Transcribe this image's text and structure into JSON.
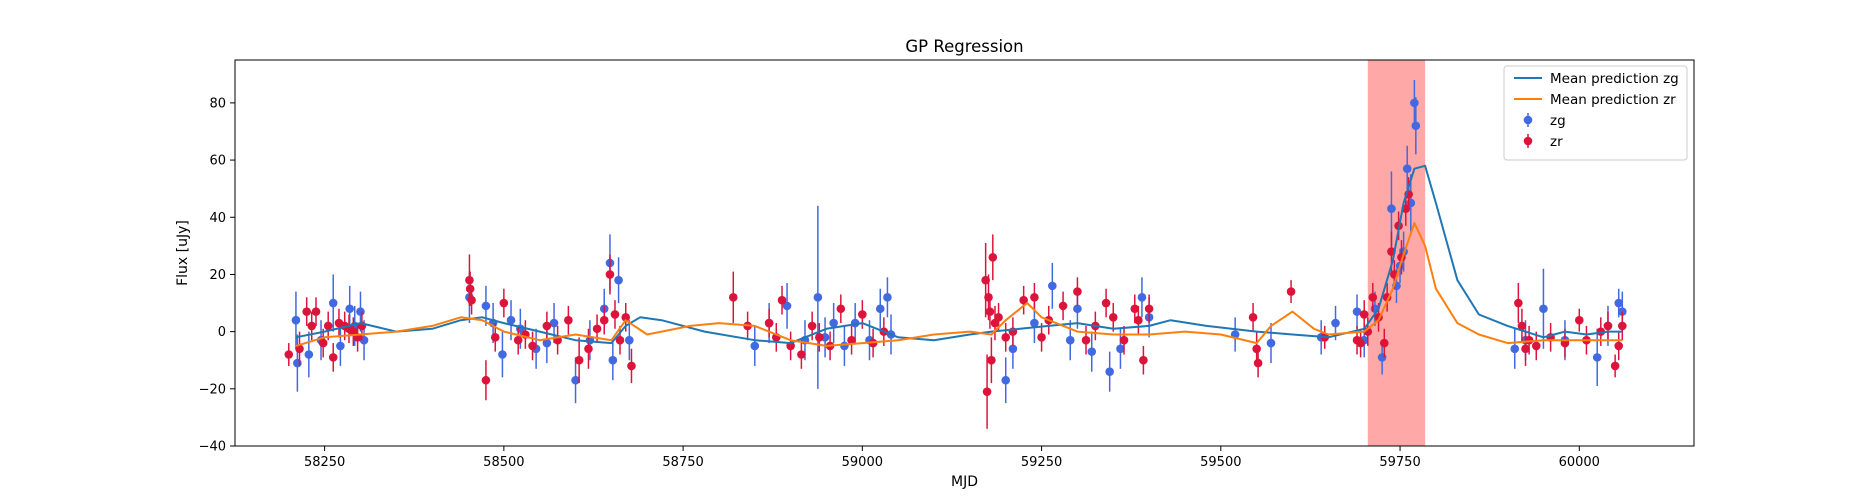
{
  "chart_data": {
    "type": "scatter",
    "title": "GP Regression",
    "xlabel": "MJD",
    "ylabel": "Flux [uJy]",
    "xlim": [
      58125,
      60160
    ],
    "ylim": [
      -40,
      95
    ],
    "xticks": [
      58250,
      58500,
      58750,
      59000,
      59250,
      59500,
      59750,
      60000
    ],
    "yticks": [
      -40,
      -20,
      0,
      20,
      40,
      60,
      80
    ],
    "xtick_labels": [
      "58250",
      "58500",
      "58750",
      "59000",
      "59250",
      "59500",
      "59750",
      "60000"
    ],
    "ytick_labels": [
      "−40",
      "−20",
      "0",
      "20",
      "40",
      "60",
      "80"
    ],
    "grid": false,
    "legend_position": "top-right",
    "highlight_band": {
      "x_start": 59705,
      "x_end": 59785,
      "color": "#ff9999"
    },
    "series": [
      {
        "name": "Mean prediction zg",
        "kind": "line",
        "color": "#1f77b4",
        "x": [
          58210,
          58250,
          58300,
          58350,
          58400,
          58440,
          58470,
          58500,
          58550,
          58600,
          58650,
          58670,
          58690,
          58720,
          58780,
          58850,
          58900,
          58950,
          59000,
          59050,
          59100,
          59150,
          59180,
          59220,
          59260,
          59300,
          59350,
          59400,
          59430,
          59480,
          59550,
          59600,
          59650,
          59700,
          59720,
          59740,
          59755,
          59770,
          59785,
          59800,
          59830,
          59860,
          59900,
          59950,
          59980,
          60010,
          60040,
          60060
        ],
        "y": [
          -2,
          0,
          3,
          0,
          1,
          4,
          5,
          3,
          0,
          -3,
          -4,
          2,
          5,
          4,
          0,
          -3,
          -4,
          1,
          3,
          -2,
          -3,
          -1,
          0,
          1,
          2,
          3,
          1,
          2,
          4,
          2,
          0,
          -1,
          -2,
          1,
          8,
          25,
          45,
          57,
          58,
          45,
          18,
          6,
          2,
          -2,
          0,
          -1,
          0,
          0
        ]
      },
      {
        "name": "Mean prediction zr",
        "kind": "line",
        "color": "#ff7f0e",
        "x": [
          58210,
          58250,
          58300,
          58350,
          58400,
          58440,
          58470,
          58500,
          58550,
          58600,
          58650,
          58670,
          58700,
          58760,
          58800,
          58850,
          58900,
          58950,
          59000,
          59050,
          59100,
          59150,
          59180,
          59200,
          59230,
          59250,
          59300,
          59350,
          59400,
          59450,
          59500,
          59550,
          59570,
          59600,
          59630,
          59650,
          59700,
          59720,
          59740,
          59755,
          59770,
          59785,
          59800,
          59830,
          59860,
          59900,
          59950,
          60000,
          60060
        ],
        "y": [
          -5,
          -2,
          -1,
          0,
          2,
          5,
          4,
          0,
          -3,
          -1,
          -3,
          4,
          -1,
          2,
          3,
          2,
          -3,
          -5,
          -4,
          -3,
          -1,
          0,
          -1,
          4,
          10,
          5,
          0,
          -1,
          -1,
          0,
          -1,
          -4,
          2,
          7,
          1,
          -1,
          0,
          4,
          15,
          27,
          38,
          30,
          15,
          3,
          -1,
          -4,
          -3,
          -3,
          -3
        ]
      },
      {
        "name": "zg",
        "kind": "errorbar",
        "color": "#4169e1",
        "x": [
          58210,
          58212,
          58228,
          58245,
          58262,
          58272,
          58285,
          58292,
          58300,
          58305,
          58452,
          58475,
          58485,
          58498,
          58510,
          58523,
          58545,
          58560,
          58570,
          58600,
          58620,
          58640,
          58648,
          58652,
          58660,
          58675,
          58850,
          58870,
          58895,
          58920,
          58938,
          58948,
          58960,
          58975,
          58990,
          59010,
          59025,
          59035,
          59040,
          59200,
          59210,
          59240,
          59265,
          59290,
          59300,
          59320,
          59345,
          59360,
          59390,
          59400,
          59520,
          59570,
          59640,
          59660,
          59690,
          59700,
          59715,
          59725,
          59738,
          59745,
          59750,
          59755,
          59760,
          59765,
          59770,
          59772,
          59910,
          59925,
          59950,
          59980,
          60025,
          60040,
          60055,
          60060
        ],
        "y": [
          4,
          -11,
          -8,
          -3,
          10,
          -5,
          8,
          2,
          7,
          -3,
          12,
          9,
          3,
          -8,
          4,
          1,
          -6,
          -4,
          3,
          -17,
          -3,
          8,
          24,
          -10,
          18,
          -3,
          -5,
          3,
          9,
          -3,
          12,
          -2,
          3,
          -5,
          3,
          -3,
          8,
          12,
          -1,
          -17,
          -6,
          3,
          16,
          -3,
          8,
          -7,
          -14,
          -6,
          12,
          5,
          -1,
          -4,
          -2,
          3,
          7,
          -3,
          8,
          -9,
          43,
          16,
          23,
          28,
          57,
          45,
          80,
          72,
          -6,
          -3,
          8,
          -3,
          -9,
          2,
          10,
          7
        ],
        "err": [
          10,
          10,
          8,
          7,
          10,
          7,
          8,
          7,
          7,
          7,
          9,
          7,
          7,
          8,
          7,
          7,
          7,
          7,
          7,
          8,
          7,
          7,
          10,
          7,
          8,
          7,
          7,
          7,
          8,
          7,
          32,
          7,
          7,
          7,
          7,
          7,
          7,
          7,
          7,
          8,
          7,
          7,
          8,
          7,
          7,
          7,
          7,
          7,
          7,
          7,
          6,
          7,
          6,
          6,
          6,
          6,
          6,
          6,
          13,
          6,
          6,
          7,
          8,
          10,
          8,
          10,
          7,
          7,
          14,
          7,
          10,
          7,
          5,
          7
        ]
      },
      {
        "name": "zr",
        "kind": "errorbar",
        "color": "#dc143c",
        "x": [
          58200,
          58215,
          58225,
          58232,
          58238,
          58248,
          58255,
          58262,
          58270,
          58278,
          58284,
          58290,
          58296,
          58302,
          58452,
          58453,
          58455,
          58475,
          58488,
          58500,
          58520,
          58530,
          58540,
          58560,
          58575,
          58590,
          58605,
          58618,
          58630,
          58640,
          58648,
          58655,
          58662,
          58670,
          58678,
          58820,
          58840,
          58870,
          58880,
          58888,
          58900,
          58915,
          58930,
          58940,
          58955,
          58970,
          58985,
          59000,
          59015,
          59030,
          59172,
          59174,
          59176,
          59178,
          59180,
          59182,
          59185,
          59190,
          59200,
          59210,
          59225,
          59240,
          59250,
          59260,
          59280,
          59300,
          59312,
          59325,
          59340,
          59350,
          59365,
          59380,
          59385,
          59392,
          59400,
          59545,
          59550,
          59552,
          59598,
          59645,
          59690,
          59695,
          59700,
          59705,
          59712,
          59720,
          59728,
          59732,
          59738,
          59742,
          59748,
          59752,
          59758,
          59762,
          59915,
          59920,
          59925,
          59930,
          59940,
          59960,
          59980,
          60000,
          60010,
          60030,
          60040,
          60050,
          60055,
          60060
        ],
        "y": [
          -8,
          -6,
          7,
          2,
          7,
          -4,
          2,
          -9,
          3,
          2,
          1,
          0,
          -2,
          2,
          18,
          15,
          11,
          -17,
          -2,
          10,
          -3,
          -1,
          -5,
          2,
          -3,
          4,
          -10,
          -6,
          1,
          4,
          20,
          6,
          -3,
          5,
          -12,
          12,
          2,
          3,
          -2,
          11,
          -5,
          -8,
          2,
          -2,
          -5,
          8,
          -3,
          6,
          -4,
          0,
          18,
          -21,
          12,
          7,
          -10,
          26,
          3,
          5,
          -2,
          0,
          11,
          12,
          -2,
          4,
          9,
          14,
          -3,
          2,
          10,
          5,
          -3,
          8,
          4,
          -10,
          8,
          5,
          -6,
          -11,
          14,
          -2,
          -3,
          -4,
          6,
          0,
          12,
          5,
          -4,
          12,
          28,
          20,
          37,
          26,
          43,
          48,
          10,
          2,
          -6,
          -3,
          -5,
          -2,
          -4,
          4,
          -3,
          0,
          2,
          -12,
          -5,
          2
        ],
        "err": [
          4,
          6,
          5,
          5,
          5,
          5,
          5,
          5,
          5,
          5,
          5,
          5,
          5,
          5,
          9,
          6,
          5,
          7,
          5,
          5,
          5,
          5,
          5,
          5,
          5,
          5,
          8,
          7,
          5,
          5,
          7,
          5,
          5,
          5,
          6,
          9,
          5,
          5,
          5,
          5,
          5,
          5,
          5,
          5,
          5,
          5,
          5,
          5,
          5,
          5,
          13,
          13,
          8,
          6,
          8,
          8,
          6,
          5,
          5,
          5,
          5,
          5,
          5,
          5,
          5,
          5,
          5,
          5,
          5,
          5,
          5,
          5,
          5,
          5,
          5,
          5,
          6,
          5,
          4,
          4,
          5,
          5,
          5,
          5,
          5,
          5,
          5,
          5,
          7,
          5,
          5,
          6,
          6,
          6,
          7,
          6,
          6,
          5,
          5,
          5,
          5,
          4,
          5,
          5,
          5,
          4,
          5,
          5
        ]
      }
    ]
  }
}
